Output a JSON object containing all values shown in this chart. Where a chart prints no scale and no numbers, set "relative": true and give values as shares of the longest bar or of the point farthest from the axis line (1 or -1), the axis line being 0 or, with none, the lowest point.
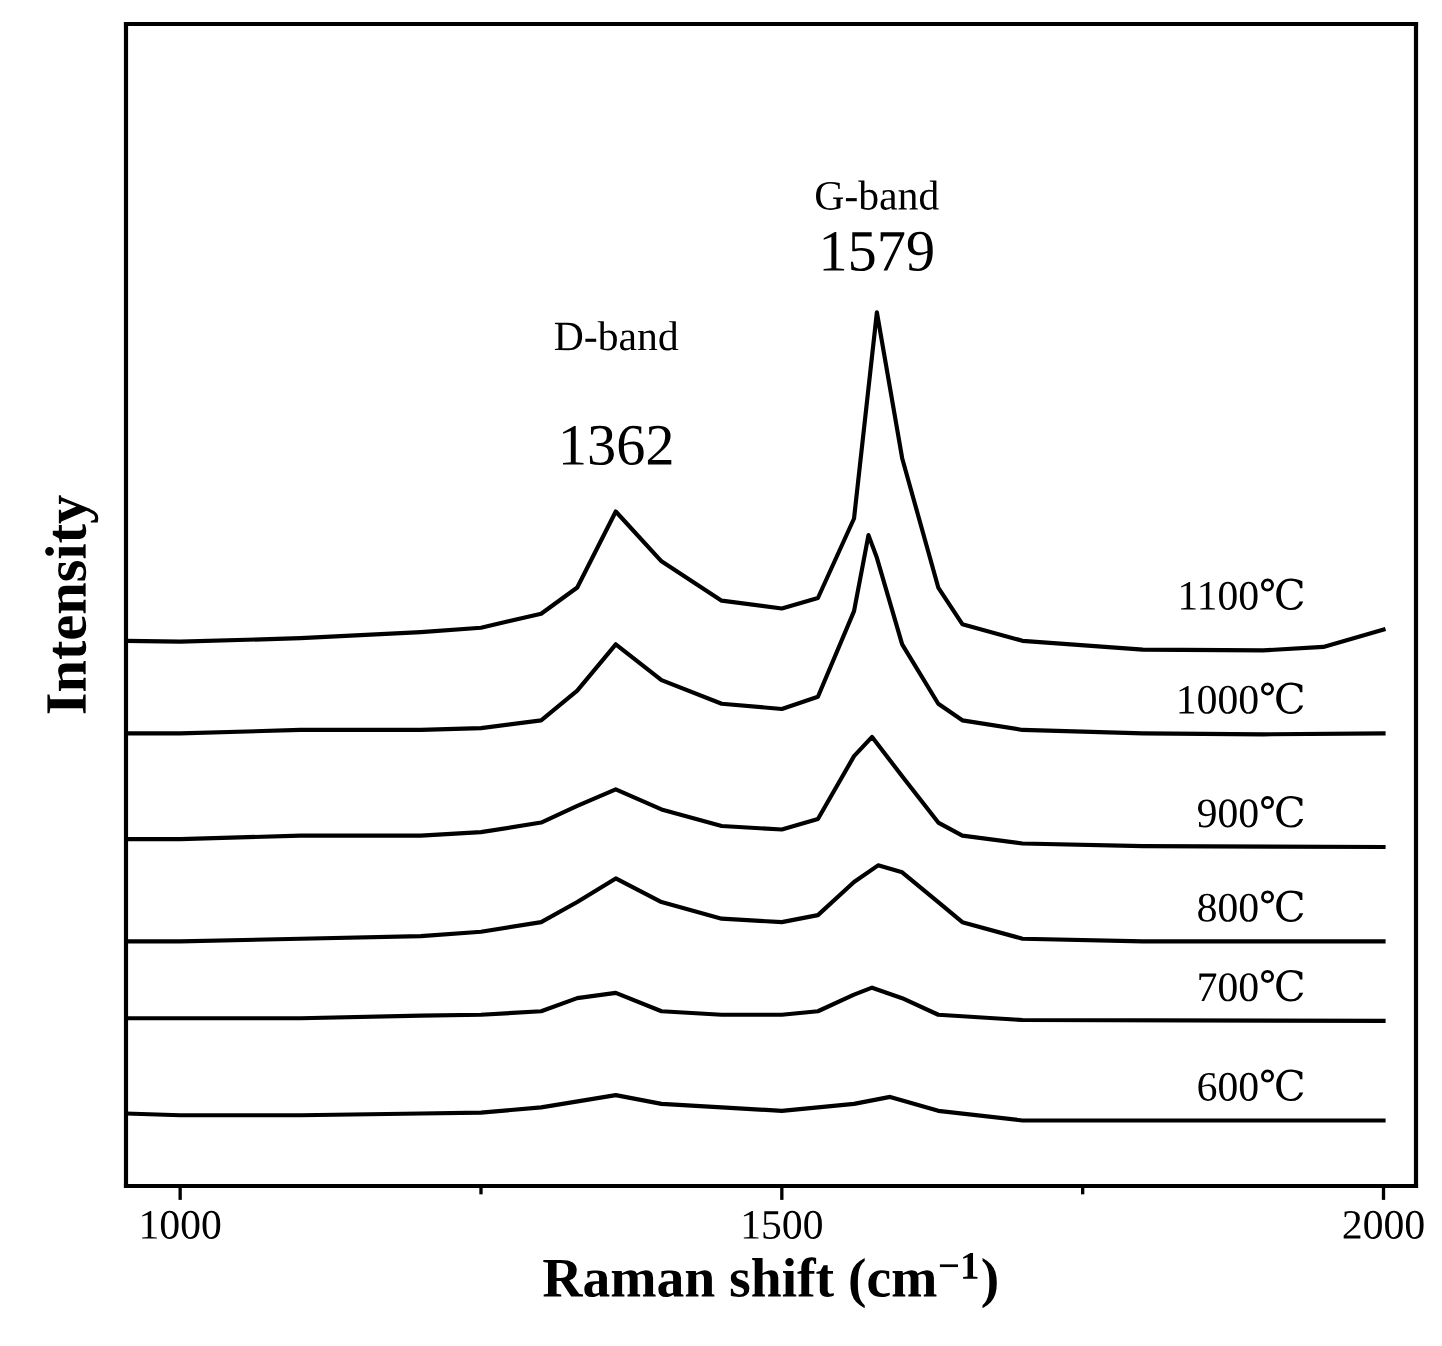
{
  "chart_data": {
    "type": "line",
    "relative": true,
    "xlabel": "Raman shift (cm$^{−1}$)",
    "ylabel": "Intensity",
    "xlim": [
      955,
      2027
    ],
    "xticks": [
      1000,
      {
        "value": 1250,
        "label": null
      },
      1500,
      {
        "value": 1750,
        "label": null
      },
      2000
    ],
    "marker": "none",
    "line_style": "solid",
    "series": [
      {
        "name": "1100℃",
        "color": "#000000",
        "x": [
          955,
          1000,
          1100,
          1200,
          1250,
          1300,
          1330,
          1362,
          1400,
          1450,
          1500,
          1530,
          1560,
          1579,
          1600,
          1630,
          1650,
          1700,
          1800,
          1900,
          1950,
          2000
        ],
        "values": [
          0.624,
          0.623,
          0.627,
          0.634,
          0.639,
          0.655,
          0.685,
          0.772,
          0.715,
          0.67,
          0.661,
          0.673,
          0.764,
          1.0,
          0.833,
          0.685,
          0.643,
          0.624,
          0.614,
          0.613,
          0.617,
          0.637
        ]
      },
      {
        "name": "1000℃",
        "color": "#000000",
        "x": [
          955,
          1000,
          1100,
          1200,
          1250,
          1300,
          1330,
          1362,
          1400,
          1450,
          1500,
          1530,
          1560,
          1572,
          1579,
          1600,
          1630,
          1650,
          1700,
          1800,
          1900,
          2000
        ],
        "values": [
          0.518,
          0.518,
          0.522,
          0.522,
          0.524,
          0.533,
          0.567,
          0.62,
          0.579,
          0.552,
          0.546,
          0.56,
          0.658,
          0.745,
          0.719,
          0.62,
          0.552,
          0.533,
          0.522,
          0.518,
          0.517,
          0.518
        ]
      },
      {
        "name": "900℃",
        "color": "#000000",
        "x": [
          955,
          1000,
          1100,
          1200,
          1250,
          1300,
          1330,
          1362,
          1400,
          1450,
          1500,
          1530,
          1560,
          1575,
          1600,
          1630,
          1650,
          1700,
          1800,
          2000
        ],
        "values": [
          0.397,
          0.397,
          0.401,
          0.401,
          0.405,
          0.416,
          0.435,
          0.454,
          0.431,
          0.412,
          0.408,
          0.42,
          0.492,
          0.514,
          0.469,
          0.416,
          0.401,
          0.392,
          0.389,
          0.388
        ]
      },
      {
        "name": "800℃",
        "color": "#000000",
        "x": [
          955,
          1000,
          1100,
          1200,
          1250,
          1300,
          1330,
          1362,
          1400,
          1450,
          1500,
          1530,
          1560,
          1580,
          1600,
          1630,
          1650,
          1700,
          1800,
          2000
        ],
        "values": [
          0.28,
          0.28,
          0.283,
          0.286,
          0.291,
          0.302,
          0.325,
          0.352,
          0.325,
          0.306,
          0.302,
          0.31,
          0.348,
          0.367,
          0.359,
          0.325,
          0.302,
          0.283,
          0.28,
          0.28
        ]
      },
      {
        "name": "700℃",
        "color": "#000000",
        "x": [
          955,
          1000,
          1100,
          1200,
          1250,
          1300,
          1330,
          1362,
          1400,
          1450,
          1500,
          1530,
          1560,
          1575,
          1600,
          1630,
          1700,
          2000
        ],
        "values": [
          0.192,
          0.192,
          0.192,
          0.195,
          0.196,
          0.2,
          0.215,
          0.221,
          0.2,
          0.196,
          0.196,
          0.2,
          0.219,
          0.227,
          0.215,
          0.196,
          0.19,
          0.189
        ]
      },
      {
        "name": "600℃",
        "color": "#000000",
        "x": [
          955,
          1000,
          1100,
          1200,
          1250,
          1300,
          1362,
          1400,
          1450,
          1500,
          1560,
          1590,
          1630,
          1700,
          2000
        ],
        "values": [
          0.083,
          0.081,
          0.081,
          0.083,
          0.084,
          0.09,
          0.104,
          0.094,
          0.09,
          0.086,
          0.094,
          0.102,
          0.086,
          0.075,
          0.075
        ]
      }
    ],
    "annotations": [
      "D-band",
      "1362",
      "G-band",
      "1579"
    ]
  }
}
